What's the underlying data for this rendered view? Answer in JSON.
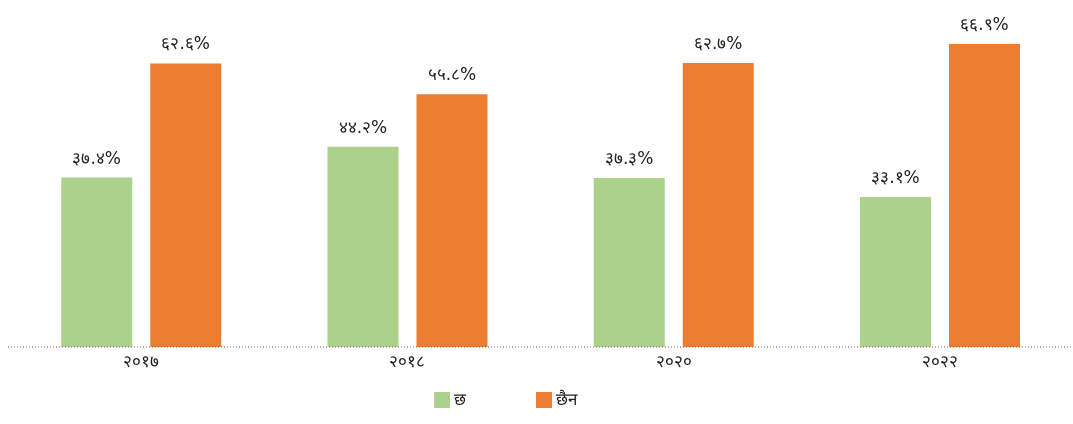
{
  "chart_data": {
    "type": "bar",
    "categories": [
      "२०१७",
      "२०१८",
      "२०२०",
      "२०२२"
    ],
    "series": [
      {
        "name": "छ",
        "color": "#acd18b",
        "values": [
          37.4,
          44.2,
          37.3,
          33.1
        ],
        "value_labels": [
          "३७.४%",
          "४४.२%",
          "३७.३%",
          "३३.१%"
        ]
      },
      {
        "name": "छैन",
        "color": "#ed7d31",
        "values": [
          62.6,
          55.8,
          62.7,
          66.9
        ],
        "value_labels": [
          "६२.६%",
          "५५.८%",
          "६२.७%",
          "६६.९%"
        ]
      }
    ],
    "legend": "bottom",
    "grid": false
  }
}
